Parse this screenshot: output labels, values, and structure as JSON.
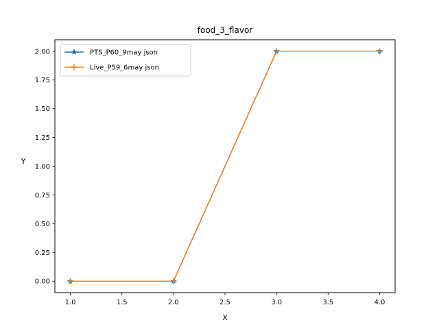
{
  "chart_data": {
    "type": "line",
    "title": "food_3_flavor",
    "xlabel": "X",
    "ylabel": "Y",
    "xlim": [
      0.85,
      4.15
    ],
    "ylim": [
      -0.1,
      2.1
    ],
    "xticks": [
      1.0,
      1.5,
      2.0,
      2.5,
      3.0,
      3.5,
      4.0
    ],
    "xtick_labels": [
      "1.0",
      "1.5",
      "2.0",
      "2.5",
      "3.0",
      "3.5",
      "4.0"
    ],
    "yticks": [
      0.0,
      0.25,
      0.5,
      0.75,
      1.0,
      1.25,
      1.5,
      1.75,
      2.0
    ],
    "ytick_labels": [
      "0.00",
      "0.25",
      "0.50",
      "0.75",
      "1.00",
      "1.25",
      "1.50",
      "1.75",
      "2.00"
    ],
    "x": [
      1,
      2,
      3,
      4
    ],
    "series": [
      {
        "name": "PTS_P60_9may json",
        "values": [
          0,
          0,
          2,
          2
        ],
        "color": "#1f77b4",
        "marker": "star"
      },
      {
        "name": "Live_P59_6may json",
        "values": [
          0,
          0,
          2,
          2
        ],
        "color": "#ff7f0e",
        "marker": "plus"
      }
    ],
    "grid": false,
    "legend_position": "top-left"
  }
}
